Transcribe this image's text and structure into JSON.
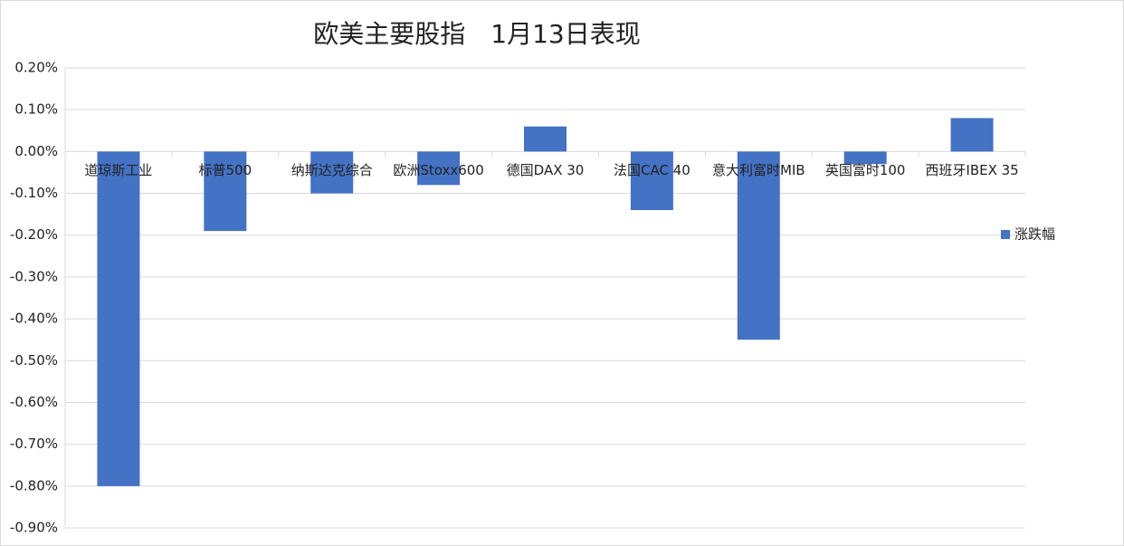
{
  "chart_data": {
    "type": "bar",
    "title": "欧美主要股指　1月13日表现",
    "categories": [
      "道琼斯工业",
      "标普500",
      "纳斯达克综合",
      "欧洲Stoxx600",
      "德国DAX 30",
      "法国CAC 40",
      "意大利富时MIB",
      "英国富时100",
      "西班牙IBEX 35"
    ],
    "series": [
      {
        "name": "涨跌幅",
        "color": "#4472c4",
        "values": [
          -0.8,
          -0.19,
          -0.1,
          -0.08,
          0.06,
          -0.14,
          -0.45,
          -0.03,
          0.08
        ]
      }
    ],
    "ylim": [
      -0.9,
      0.2
    ],
    "yticks": [
      {
        "value": 0.2,
        "label": "0.20%"
      },
      {
        "value": 0.1,
        "label": "0.10%"
      },
      {
        "value": 0,
        "label": "0.00%"
      },
      {
        "value": -0.1,
        "label": "-0.10%"
      },
      {
        "value": -0.2,
        "label": "-0.20%"
      },
      {
        "value": -0.3,
        "label": "-0.30%"
      },
      {
        "value": -0.4,
        "label": "-0.40%"
      },
      {
        "value": -0.5,
        "label": "-0.50%"
      },
      {
        "value": -0.6,
        "label": "-0.60%"
      },
      {
        "value": -0.7,
        "label": "-0.70%"
      },
      {
        "value": -0.8,
        "label": "-0.80%"
      },
      {
        "value": -0.9,
        "label": "-0.90%"
      }
    ],
    "grid": true,
    "legend": "right"
  }
}
